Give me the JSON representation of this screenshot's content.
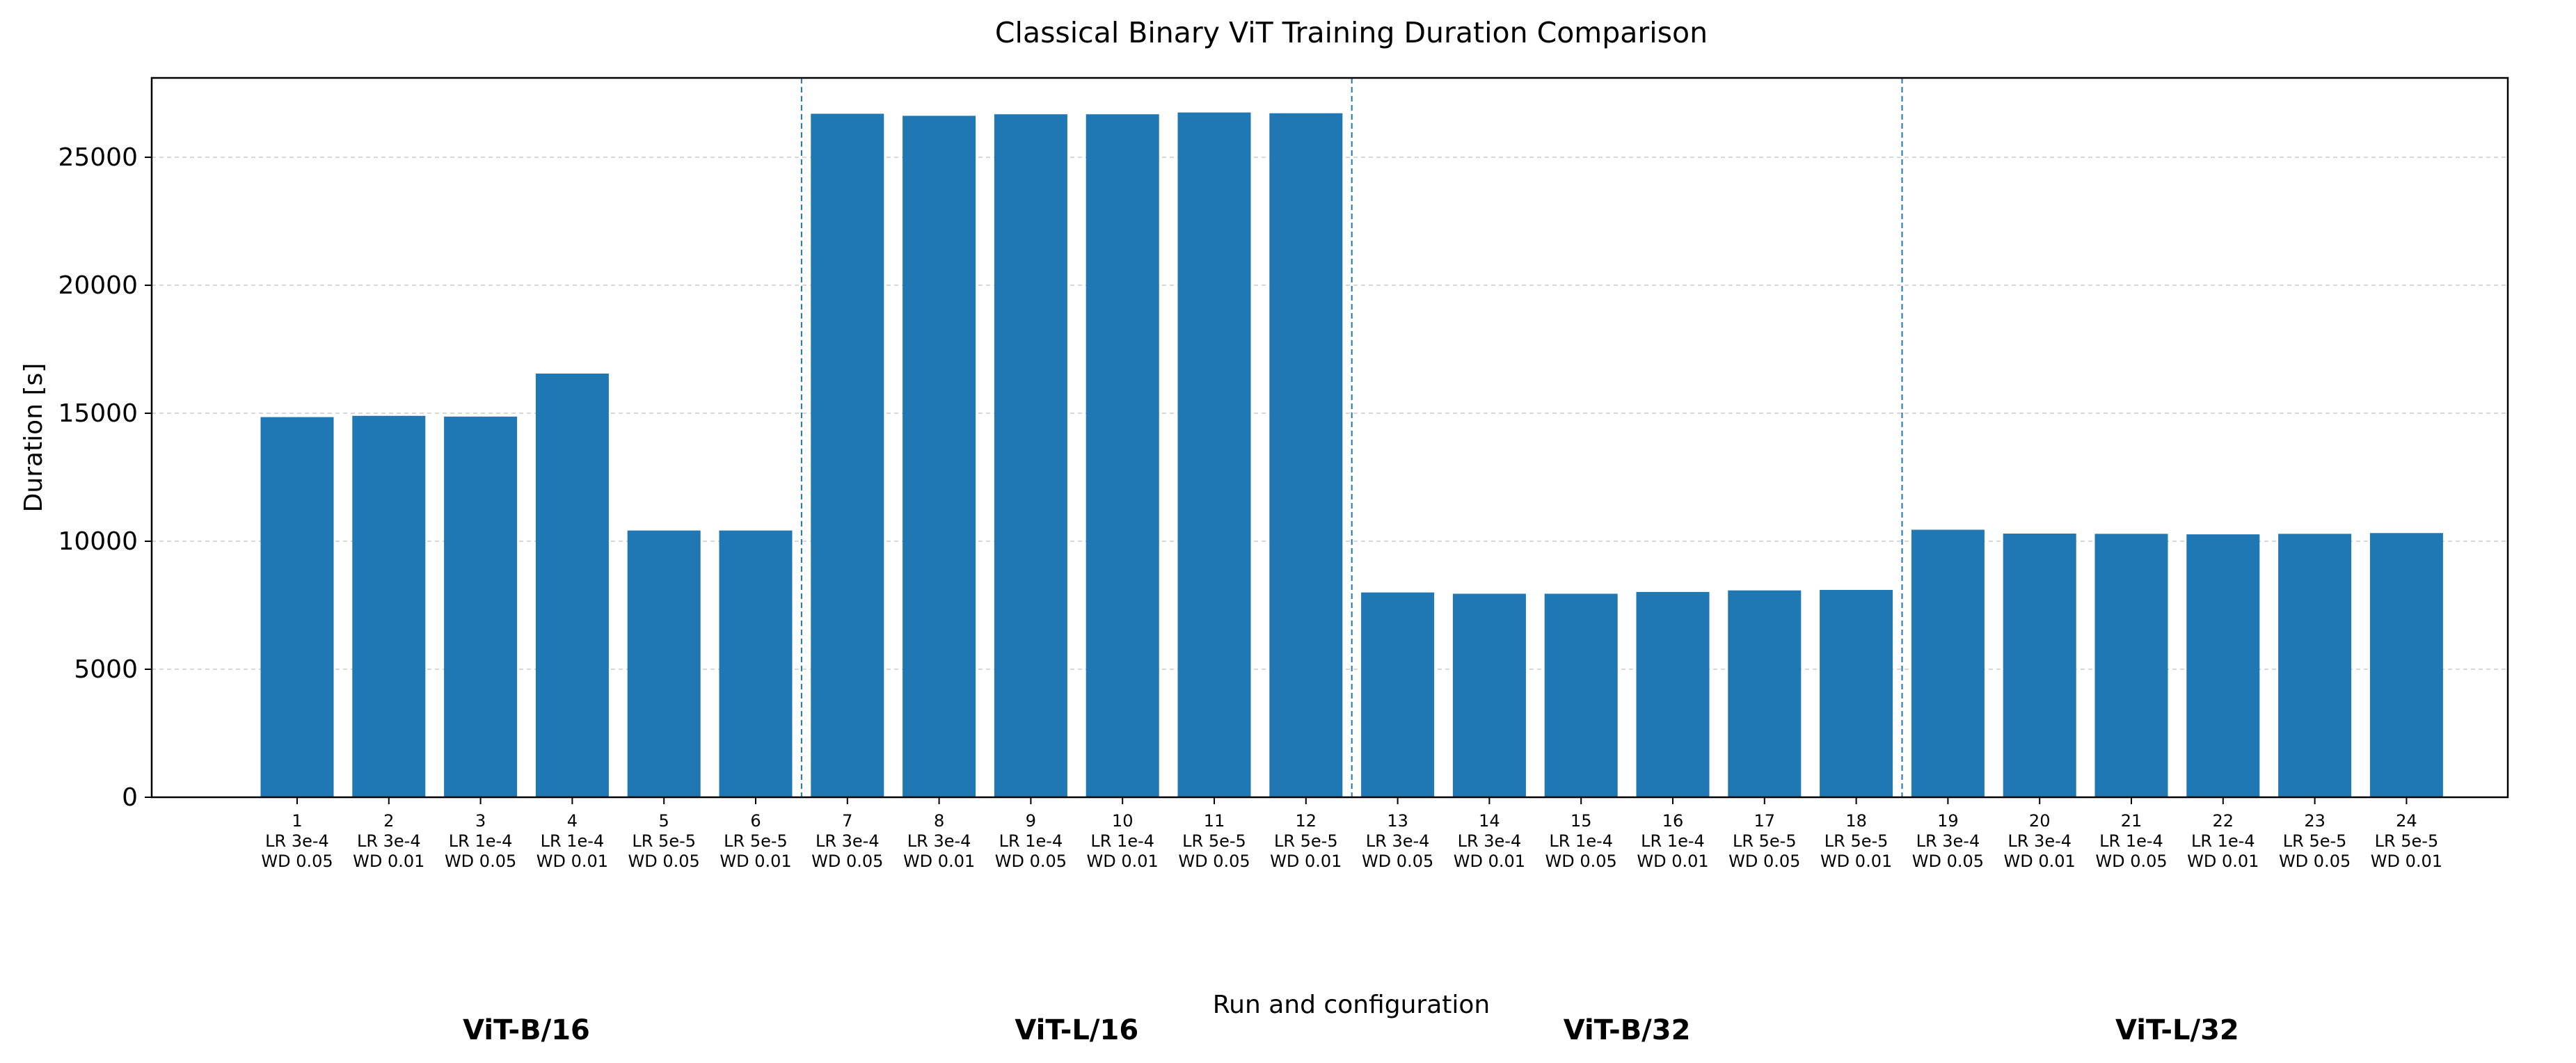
{
  "chart_data": {
    "type": "bar",
    "title": "Classical Binary ViT Training Duration Comparison",
    "xlabel": "Run and configuration",
    "ylabel": "Duration [s]",
    "ylim": [
      0,
      28100
    ],
    "yticks": [
      0,
      5000,
      10000,
      15000,
      20000,
      25000
    ],
    "grid": "y-dashed",
    "bar_color": "#1f77b4",
    "separator_color": "#1f77b4",
    "categories": [
      [
        "1",
        "LR 3e-4",
        "WD 0.05"
      ],
      [
        "2",
        "LR 3e-4",
        "WD 0.01"
      ],
      [
        "3",
        "LR 1e-4",
        "WD 0.05"
      ],
      [
        "4",
        "LR 1e-4",
        "WD 0.01"
      ],
      [
        "5",
        "LR 5e-5",
        "WD 0.05"
      ],
      [
        "6",
        "LR 5e-5",
        "WD 0.01"
      ],
      [
        "7",
        "LR 3e-4",
        "WD 0.05"
      ],
      [
        "8",
        "LR 3e-4",
        "WD 0.01"
      ],
      [
        "9",
        "LR 1e-4",
        "WD 0.05"
      ],
      [
        "10",
        "LR 1e-4",
        "WD 0.01"
      ],
      [
        "11",
        "LR 5e-5",
        "WD 0.05"
      ],
      [
        "12",
        "LR 5e-5",
        "WD 0.01"
      ],
      [
        "13",
        "LR 3e-4",
        "WD 0.05"
      ],
      [
        "14",
        "LR 3e-4",
        "WD 0.01"
      ],
      [
        "15",
        "LR 1e-4",
        "WD 0.05"
      ],
      [
        "16",
        "LR 1e-4",
        "WD 0.01"
      ],
      [
        "17",
        "LR 5e-5",
        "WD 0.05"
      ],
      [
        "18",
        "LR 5e-5",
        "WD 0.01"
      ],
      [
        "19",
        "LR 3e-4",
        "WD 0.05"
      ],
      [
        "20",
        "LR 3e-4",
        "WD 0.01"
      ],
      [
        "21",
        "LR 1e-4",
        "WD 0.05"
      ],
      [
        "22",
        "LR 1e-4",
        "WD 0.01"
      ],
      [
        "23",
        "LR 5e-5",
        "WD 0.05"
      ],
      [
        "24",
        "LR 5e-5",
        "WD 0.01"
      ]
    ],
    "values": [
      14850,
      14900,
      14870,
      16550,
      10420,
      10420,
      26700,
      26620,
      26680,
      26680,
      26750,
      26720,
      8000,
      7950,
      7950,
      8020,
      8080,
      8100,
      10450,
      10300,
      10290,
      10270,
      10290,
      10320
    ],
    "groups": [
      {
        "label": "ViT-B/16",
        "start": 0,
        "end": 5
      },
      {
        "label": "ViT-L/16",
        "start": 6,
        "end": 11
      },
      {
        "label": "ViT-B/32",
        "start": 12,
        "end": 17
      },
      {
        "label": "ViT-L/32",
        "start": 18,
        "end": 23
      }
    ]
  }
}
